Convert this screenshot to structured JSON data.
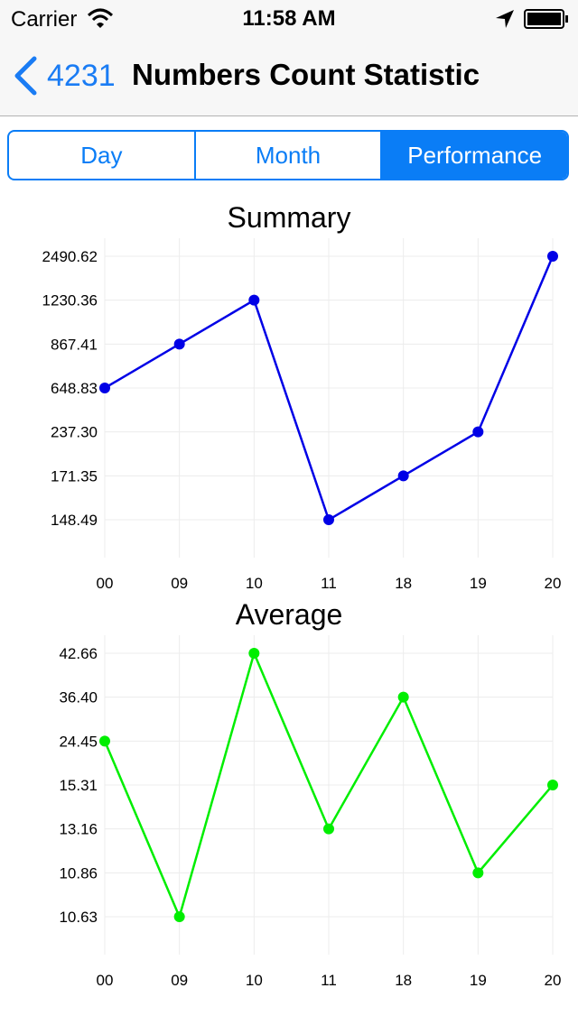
{
  "status_bar": {
    "carrier": "Carrier",
    "time": "11:58 AM",
    "icons": [
      "wifi-icon",
      "location-arrow-icon",
      "battery-icon"
    ]
  },
  "nav": {
    "back_label": "4231",
    "title": "Numbers Count Statistic",
    "back_icon": "chevron-left-icon"
  },
  "tabs": [
    {
      "label": "Day",
      "selected": false
    },
    {
      "label": "Month",
      "selected": false
    },
    {
      "label": "Performance",
      "selected": true
    }
  ],
  "colors": {
    "accent": "#0a7df6",
    "summary_line": "#0000e6",
    "average_line": "#00ee00",
    "grid": "#ececec"
  },
  "chart_data": [
    {
      "type": "line",
      "title": "Summary",
      "categories": [
        "00",
        "09",
        "10",
        "11",
        "18",
        "19",
        "20"
      ],
      "values": [
        648.83,
        867.41,
        1230.36,
        148.49,
        171.35,
        237.3,
        2490.62
      ],
      "ytick_labels": [
        "148.49",
        "171.35",
        "237.30",
        "648.83",
        "867.41",
        "1230.36",
        "2490.62"
      ],
      "grid": true,
      "color": "#0000e6"
    },
    {
      "type": "line",
      "title": "Average",
      "categories": [
        "00",
        "09",
        "10",
        "11",
        "18",
        "19",
        "20"
      ],
      "values": [
        24.45,
        10.63,
        42.66,
        13.16,
        36.4,
        10.86,
        15.31
      ],
      "ytick_labels": [
        "10.63",
        "10.86",
        "13.16",
        "15.31",
        "24.45",
        "36.40",
        "42.66"
      ],
      "grid": true,
      "color": "#00ee00"
    }
  ]
}
